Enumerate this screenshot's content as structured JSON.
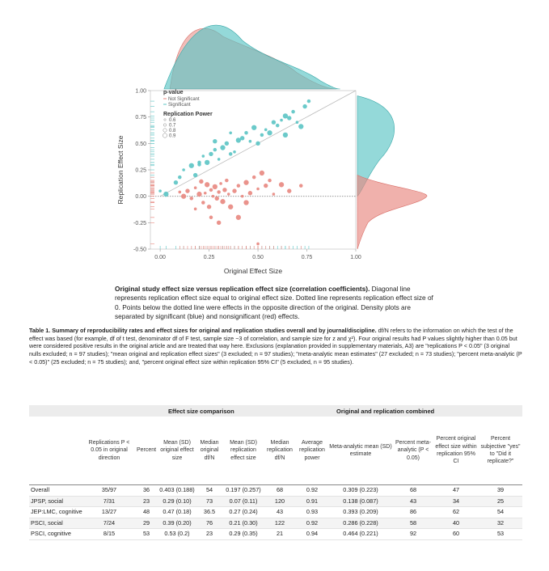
{
  "figure": {
    "x_axis_title": "Original Effect Size",
    "y_axis_title": "Replication Effect Size",
    "x_ticks": [
      "0.00",
      "0.25",
      "0.50",
      "0.75",
      "1.00"
    ],
    "y_ticks": [
      "1.00",
      "0.75",
      "0.50",
      "0.25",
      "0.00",
      "-0.25",
      "-0.50"
    ],
    "legend": {
      "pvalue_title": "p-value",
      "pvalue_items": [
        "Not Significant",
        "Significant"
      ],
      "power_title": "Replication Power",
      "power_items": [
        "0.6",
        "0.7",
        "0.8",
        "0.9"
      ]
    },
    "colors": {
      "significant": "#5bc4c4",
      "not_significant": "#e8877f",
      "axis": "#999999"
    }
  },
  "chart_data": {
    "type": "scatter",
    "xlim": [
      -0.05,
      1.0
    ],
    "ylim": [
      -0.5,
      1.0
    ],
    "x_ticks": [
      0.0,
      0.25,
      0.5,
      0.75,
      1.0
    ],
    "y_ticks": [
      -0.5,
      -0.25,
      0.0,
      0.25,
      0.5,
      0.75,
      1.0
    ],
    "xlabel": "Original Effect Size",
    "ylabel": "Replication Effect Size",
    "reference_lines": [
      "diagonal y = x",
      "dotted y = 0"
    ],
    "series": [
      {
        "name": "Significant",
        "points": [
          [
            0.0,
            0.05
          ],
          [
            0.03,
            0.02
          ],
          [
            0.08,
            0.13
          ],
          [
            0.1,
            0.18
          ],
          [
            0.12,
            0.25
          ],
          [
            0.16,
            0.29
          ],
          [
            0.18,
            0.2
          ],
          [
            0.2,
            0.3
          ],
          [
            0.22,
            0.38
          ],
          [
            0.24,
            0.32
          ],
          [
            0.26,
            0.4
          ],
          [
            0.28,
            0.44
          ],
          [
            0.3,
            0.35
          ],
          [
            0.32,
            0.46
          ],
          [
            0.34,
            0.5
          ],
          [
            0.36,
            0.4
          ],
          [
            0.38,
            0.42
          ],
          [
            0.4,
            0.53
          ],
          [
            0.42,
            0.55
          ],
          [
            0.44,
            0.6
          ],
          [
            0.46,
            0.52
          ],
          [
            0.48,
            0.65
          ],
          [
            0.5,
            0.5
          ],
          [
            0.52,
            0.58
          ],
          [
            0.54,
            0.63
          ],
          [
            0.56,
            0.6
          ],
          [
            0.58,
            0.7
          ],
          [
            0.6,
            0.67
          ],
          [
            0.62,
            0.72
          ],
          [
            0.64,
            0.76
          ],
          [
            0.66,
            0.74
          ],
          [
            0.68,
            0.8
          ],
          [
            0.7,
            0.7
          ],
          [
            0.72,
            0.66
          ],
          [
            0.74,
            0.85
          ],
          [
            0.76,
            0.9
          ],
          [
            0.36,
            0.6
          ],
          [
            0.64,
            0.58
          ],
          [
            0.28,
            0.52
          ],
          [
            0.2,
            0.32
          ]
        ]
      },
      {
        "name": "Not Significant",
        "points": [
          [
            0.1,
            0.04
          ],
          [
            0.12,
            0.0
          ],
          [
            0.14,
            0.05
          ],
          [
            0.16,
            -0.02
          ],
          [
            0.18,
            0.08
          ],
          [
            0.2,
            0.02
          ],
          [
            0.21,
            0.14
          ],
          [
            0.22,
            -0.06
          ],
          [
            0.23,
            0.03
          ],
          [
            0.24,
            0.11
          ],
          [
            0.25,
            -0.1
          ],
          [
            0.26,
            0.06
          ],
          [
            0.27,
            0.0
          ],
          [
            0.28,
            0.09
          ],
          [
            0.29,
            -0.02
          ],
          [
            0.3,
            0.04
          ],
          [
            0.31,
            0.12
          ],
          [
            0.32,
            -0.05
          ],
          [
            0.33,
            0.06
          ],
          [
            0.34,
            0.15
          ],
          [
            0.35,
            0.02
          ],
          [
            0.36,
            -0.1
          ],
          [
            0.38,
            0.05
          ],
          [
            0.4,
            0.1
          ],
          [
            0.42,
            0.0
          ],
          [
            0.44,
            0.13
          ],
          [
            0.46,
            0.03
          ],
          [
            0.48,
            0.18
          ],
          [
            0.5,
            0.07
          ],
          [
            0.52,
            0.22
          ],
          [
            0.54,
            0.1
          ],
          [
            0.56,
            0.15
          ],
          [
            0.58,
            0.02
          ],
          [
            0.62,
            0.11
          ],
          [
            0.66,
            0.05
          ],
          [
            0.72,
            0.1
          ],
          [
            0.5,
            -0.45
          ],
          [
            0.4,
            -0.2
          ],
          [
            0.3,
            -0.25
          ],
          [
            0.26,
            -0.2
          ],
          [
            0.18,
            -0.12
          ],
          [
            0.44,
            -0.06
          ]
        ]
      }
    ]
  },
  "caption": {
    "bold": "Original study effect size versus replication effect size (correlation coefficients).",
    "text": " Diagonal line represents replication effect size equal to original effect size. Dotted line represents replication effect size of 0. Points below the dotted line were effects in the opposite direction of the original. Density plots are separated by significant (blue) and nonsignificant (red) effects."
  },
  "table_title": {
    "bold": "Table 1. Summary of reproducibility rates and effect sizes for original and replication studies overall and by journal/discipline.",
    "text": " df/N refers to the information on which the test of the effect was based (for example, df of t test, denominator df of F test, sample size −3 of correlation, and sample size for z and χ²). Four original results had P values slightly higher than 0.05 but were considered positive results in the original article and are treated that way here. Exclusions (explanation provided in supplementary materials, A3) are \"replications P < 0.05\" (3 original nulls excluded; n = 97 studies); \"mean original and replication effect sizes\" (3 excluded; n = 97 studies); \"meta-analytic mean estimates\" (27 excluded; n = 73 studies); \"percent meta-analytic (P < 0.05)\" (25 excluded; n = 75 studies); and, \"percent original effect size within replication 95% CI\" (5 excluded, n = 95 studies)."
  },
  "table": {
    "group_headers": [
      "Effect size comparison",
      "Original and replication combined"
    ],
    "columns": [
      "",
      "Replications P < 0.05 in original direction",
      "Percent",
      "Mean (SD) original effect size",
      "Median original df/N",
      "Mean (SD) replication effect size",
      "Median replication df/N",
      "Average replication power",
      "Meta-analytic mean (SD) estimate",
      "Percent meta-analytic (P < 0.05)",
      "Percent original effect size within replication 95% CI",
      "Percent subjective \"yes\" to \"Did it replicate?\""
    ],
    "rows": [
      [
        "Overall",
        "35/97",
        "36",
        "0.403 (0.188)",
        "54",
        "0.197 (0.257)",
        "68",
        "0.92",
        "0.309 (0.223)",
        "68",
        "47",
        "39"
      ],
      [
        "JPSP, social",
        "7/31",
        "23",
        "0.29 (0.10)",
        "73",
        "0.07 (0.11)",
        "120",
        "0.91",
        "0.138 (0.087)",
        "43",
        "34",
        "25"
      ],
      [
        "JEP:LMC, cognitive",
        "13/27",
        "48",
        "0.47 (0.18)",
        "36.5",
        "0.27 (0.24)",
        "43",
        "0.93",
        "0.393 (0.209)",
        "86",
        "62",
        "54"
      ],
      [
        "PSCI, social",
        "7/24",
        "29",
        "0.39 (0.20)",
        "76",
        "0.21 (0.30)",
        "122",
        "0.92",
        "0.286 (0.228)",
        "58",
        "40",
        "32"
      ],
      [
        "PSCI, cognitive",
        "8/15",
        "53",
        "0.53 (0.2)",
        "23",
        "0.29 (0.35)",
        "21",
        "0.94",
        "0.464 (0.221)",
        "92",
        "60",
        "53"
      ]
    ]
  }
}
